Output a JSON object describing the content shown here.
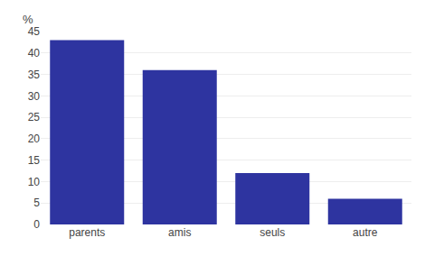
{
  "chart_data": {
    "type": "bar",
    "categories": [
      "parents",
      "amis",
      "seuls",
      "autre"
    ],
    "values": [
      43,
      36,
      12,
      6
    ],
    "color": "#2E34A0",
    "ylabel": "%",
    "ylim": [
      0,
      45
    ],
    "yticks": [
      0,
      5,
      10,
      15,
      20,
      25,
      30,
      35,
      40,
      45
    ],
    "grid": true
  }
}
